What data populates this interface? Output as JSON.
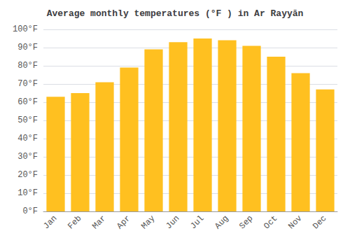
{
  "chart_data": {
    "type": "bar",
    "title": "Average monthly temperatures (°F ) in Ar Rayyān",
    "categories": [
      "Jan",
      "Feb",
      "Mar",
      "Apr",
      "May",
      "Jun",
      "Jul",
      "Aug",
      "Sep",
      "Oct",
      "Nov",
      "Dec"
    ],
    "values": [
      63,
      65,
      71,
      79,
      89,
      93,
      95,
      94,
      91,
      85,
      76,
      67
    ],
    "color": "#FFC020",
    "ylim": [
      0,
      100
    ],
    "yticks": [
      {
        "value": 0,
        "label": "0°F"
      },
      {
        "value": 10,
        "label": "10°F"
      },
      {
        "value": 20,
        "label": "20°F"
      },
      {
        "value": 30,
        "label": "30°F"
      },
      {
        "value": 40,
        "label": "40°F"
      },
      {
        "value": 50,
        "label": "50°F"
      },
      {
        "value": 60,
        "label": "60°F"
      },
      {
        "value": 70,
        "label": "70°F"
      },
      {
        "value": 80,
        "label": "80°F"
      },
      {
        "value": 90,
        "label": "90°F"
      },
      {
        "value": 100,
        "label": "100°F"
      }
    ],
    "grid": true
  }
}
